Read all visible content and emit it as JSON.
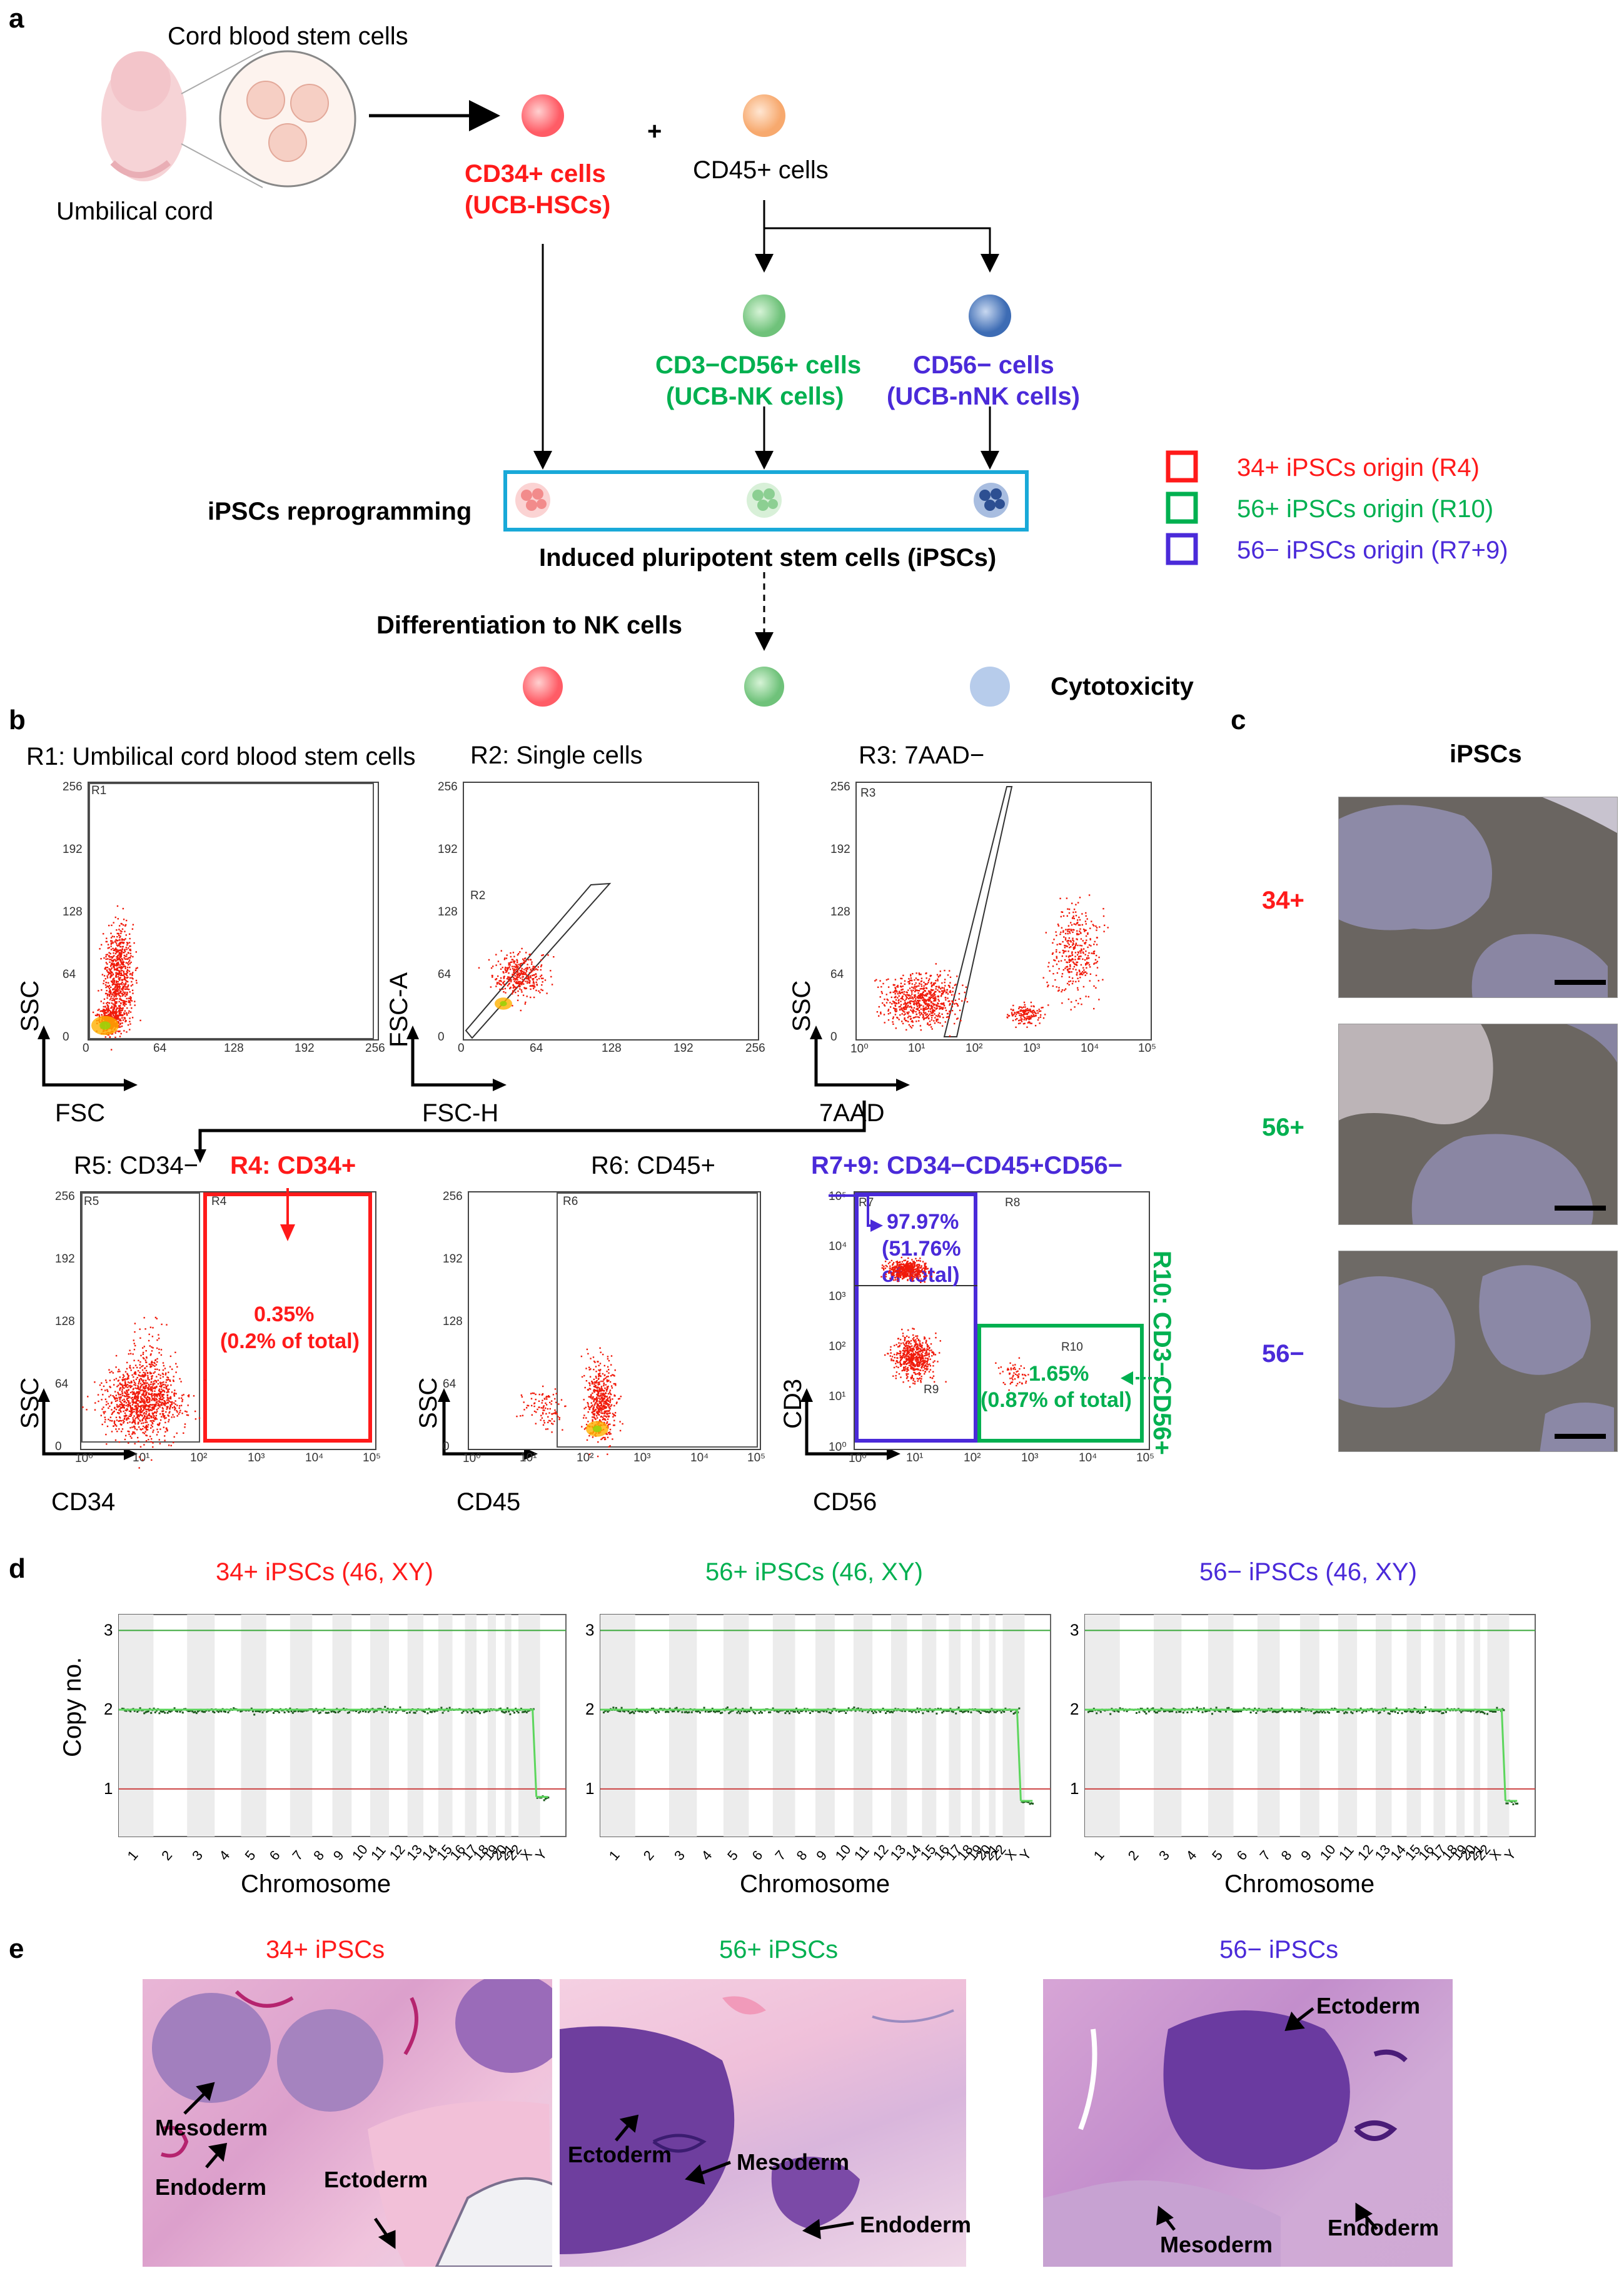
{
  "panels": {
    "a": "a",
    "b": "b",
    "c": "c",
    "d": "d",
    "e": "e"
  },
  "panel_a": {
    "cord_blood": "Cord blood stem cells",
    "umbilical_cord": "Umbilical cord",
    "plus": "+",
    "cd34_line1": "CD34+ cells",
    "cd34_line2": "(UCB-HSCs)",
    "cd45": "CD45+ cells",
    "nk_line1": "CD3−CD56+ cells",
    "nk_line2": "(UCB-NK cells)",
    "nnk_line1": "CD56− cells",
    "nnk_line2": "(UCB-nNK cells)",
    "reprogramming": "iPSCs reprogramming",
    "ipscs": "Induced pluripotent stem cells (iPSCs)",
    "differentiation": "Differentiation to NK cells",
    "cytotoxicity": "Cytotoxicity",
    "legend": [
      {
        "label": "34+ iPSCs origin (R4)",
        "color": "#ff1a1a"
      },
      {
        "label": "56+ iPSCs origin (R10)",
        "color": "#00b050"
      },
      {
        "label": "56− iPSCs origin (R7+9)",
        "color": "#4a2ad9"
      }
    ]
  },
  "panel_b": {
    "r1_title": "R1: Umbilical cord blood stem cells",
    "r2_title": "R2: Single cells",
    "r3_title": "R3: 7AAD−",
    "r5_title": "R5: CD34−",
    "r4_title": "R4: CD34+",
    "r6_title": "R6: CD45+",
    "r79_title": "R7+9: CD34−CD45+CD56−",
    "r10_title": "R10: CD3−CD56+",
    "r4_pct": "0.35%",
    "r4_total": "(0.2% of total)",
    "r79_pct": "97.97%",
    "r79_total1": "(51.76%",
    "r79_total2": "of total)",
    "r10_pct": "1.65%",
    "r10_total": "(0.87% of total)",
    "axes": {
      "ssc": "SSC",
      "fsc": "FSC",
      "fsca": "FSC-A",
      "fsch": "FSC-H",
      "aad": "7AAD",
      "cd34": "CD34",
      "cd45": "CD45",
      "cd3": "CD3",
      "cd56": "CD56"
    },
    "gate_labels": {
      "r1": "R1",
      "r2": "R2",
      "r3": "R3",
      "r4": "R4",
      "r5": "R5",
      "r6": "R6",
      "r7": "R7",
      "r8": "R8",
      "r10": "R10",
      "r9": "R9"
    },
    "lin_ticks": [
      "0",
      "64",
      "128",
      "192",
      "256"
    ],
    "log_ticks": [
      "10⁰",
      "10¹",
      "10²",
      "10³",
      "10⁴",
      "10⁵"
    ]
  },
  "panel_c": {
    "title": "iPSCs",
    "rows": [
      "34+",
      "56+",
      "56−"
    ]
  },
  "panel_d": {
    "ylabel": "Copy no.",
    "xlabel": "Chromosome",
    "yticks": [
      "3",
      "2",
      "1"
    ],
    "chromosomes": [
      "1",
      "2",
      "3",
      "4",
      "5",
      "6",
      "7",
      "8",
      "9",
      "10",
      "11",
      "12",
      "13",
      "14",
      "15",
      "16",
      "17",
      "18",
      "19",
      "20",
      "21",
      "22",
      "X",
      "Y"
    ],
    "titles": [
      "34+ iPSCs (46, XY)",
      "56+ iPSCs (46, XY)",
      "56− iPSCs (46, XY)"
    ]
  },
  "chart_data": [
    {
      "type": "scatter",
      "title": "34+ iPSCs (46, XY)",
      "xlabel": "Chromosome",
      "ylabel": "Copy no.",
      "ylim": [
        0.4,
        3.2
      ],
      "series": [
        {
          "name": "autosomes 1-22 + X",
          "value": 2
        },
        {
          "name": "Y",
          "value": 0.9
        }
      ]
    },
    {
      "type": "scatter",
      "title": "56+ iPSCs (46, XY)",
      "xlabel": "Chromosome",
      "ylabel": "Copy no.",
      "ylim": [
        0.4,
        3.2
      ],
      "series": [
        {
          "name": "autosomes 1-22 + X",
          "value": 2
        },
        {
          "name": "Y",
          "value": 0.85
        }
      ]
    },
    {
      "type": "scatter",
      "title": "56− iPSCs (46, XY)",
      "xlabel": "Chromosome",
      "ylabel": "Copy no.",
      "ylim": [
        0.4,
        3.2
      ],
      "series": [
        {
          "name": "autosomes 1-22 + X",
          "value": 2
        },
        {
          "name": "Y",
          "value": 0.85
        }
      ]
    }
  ],
  "panel_e": {
    "titles": [
      "34+ iPSCs",
      "56+ iPSCs",
      "56− iPSCs"
    ],
    "labels": {
      "mesoderm": "Mesoderm",
      "endoderm": "Endoderm",
      "ectoderm": "Ectoderm"
    }
  }
}
